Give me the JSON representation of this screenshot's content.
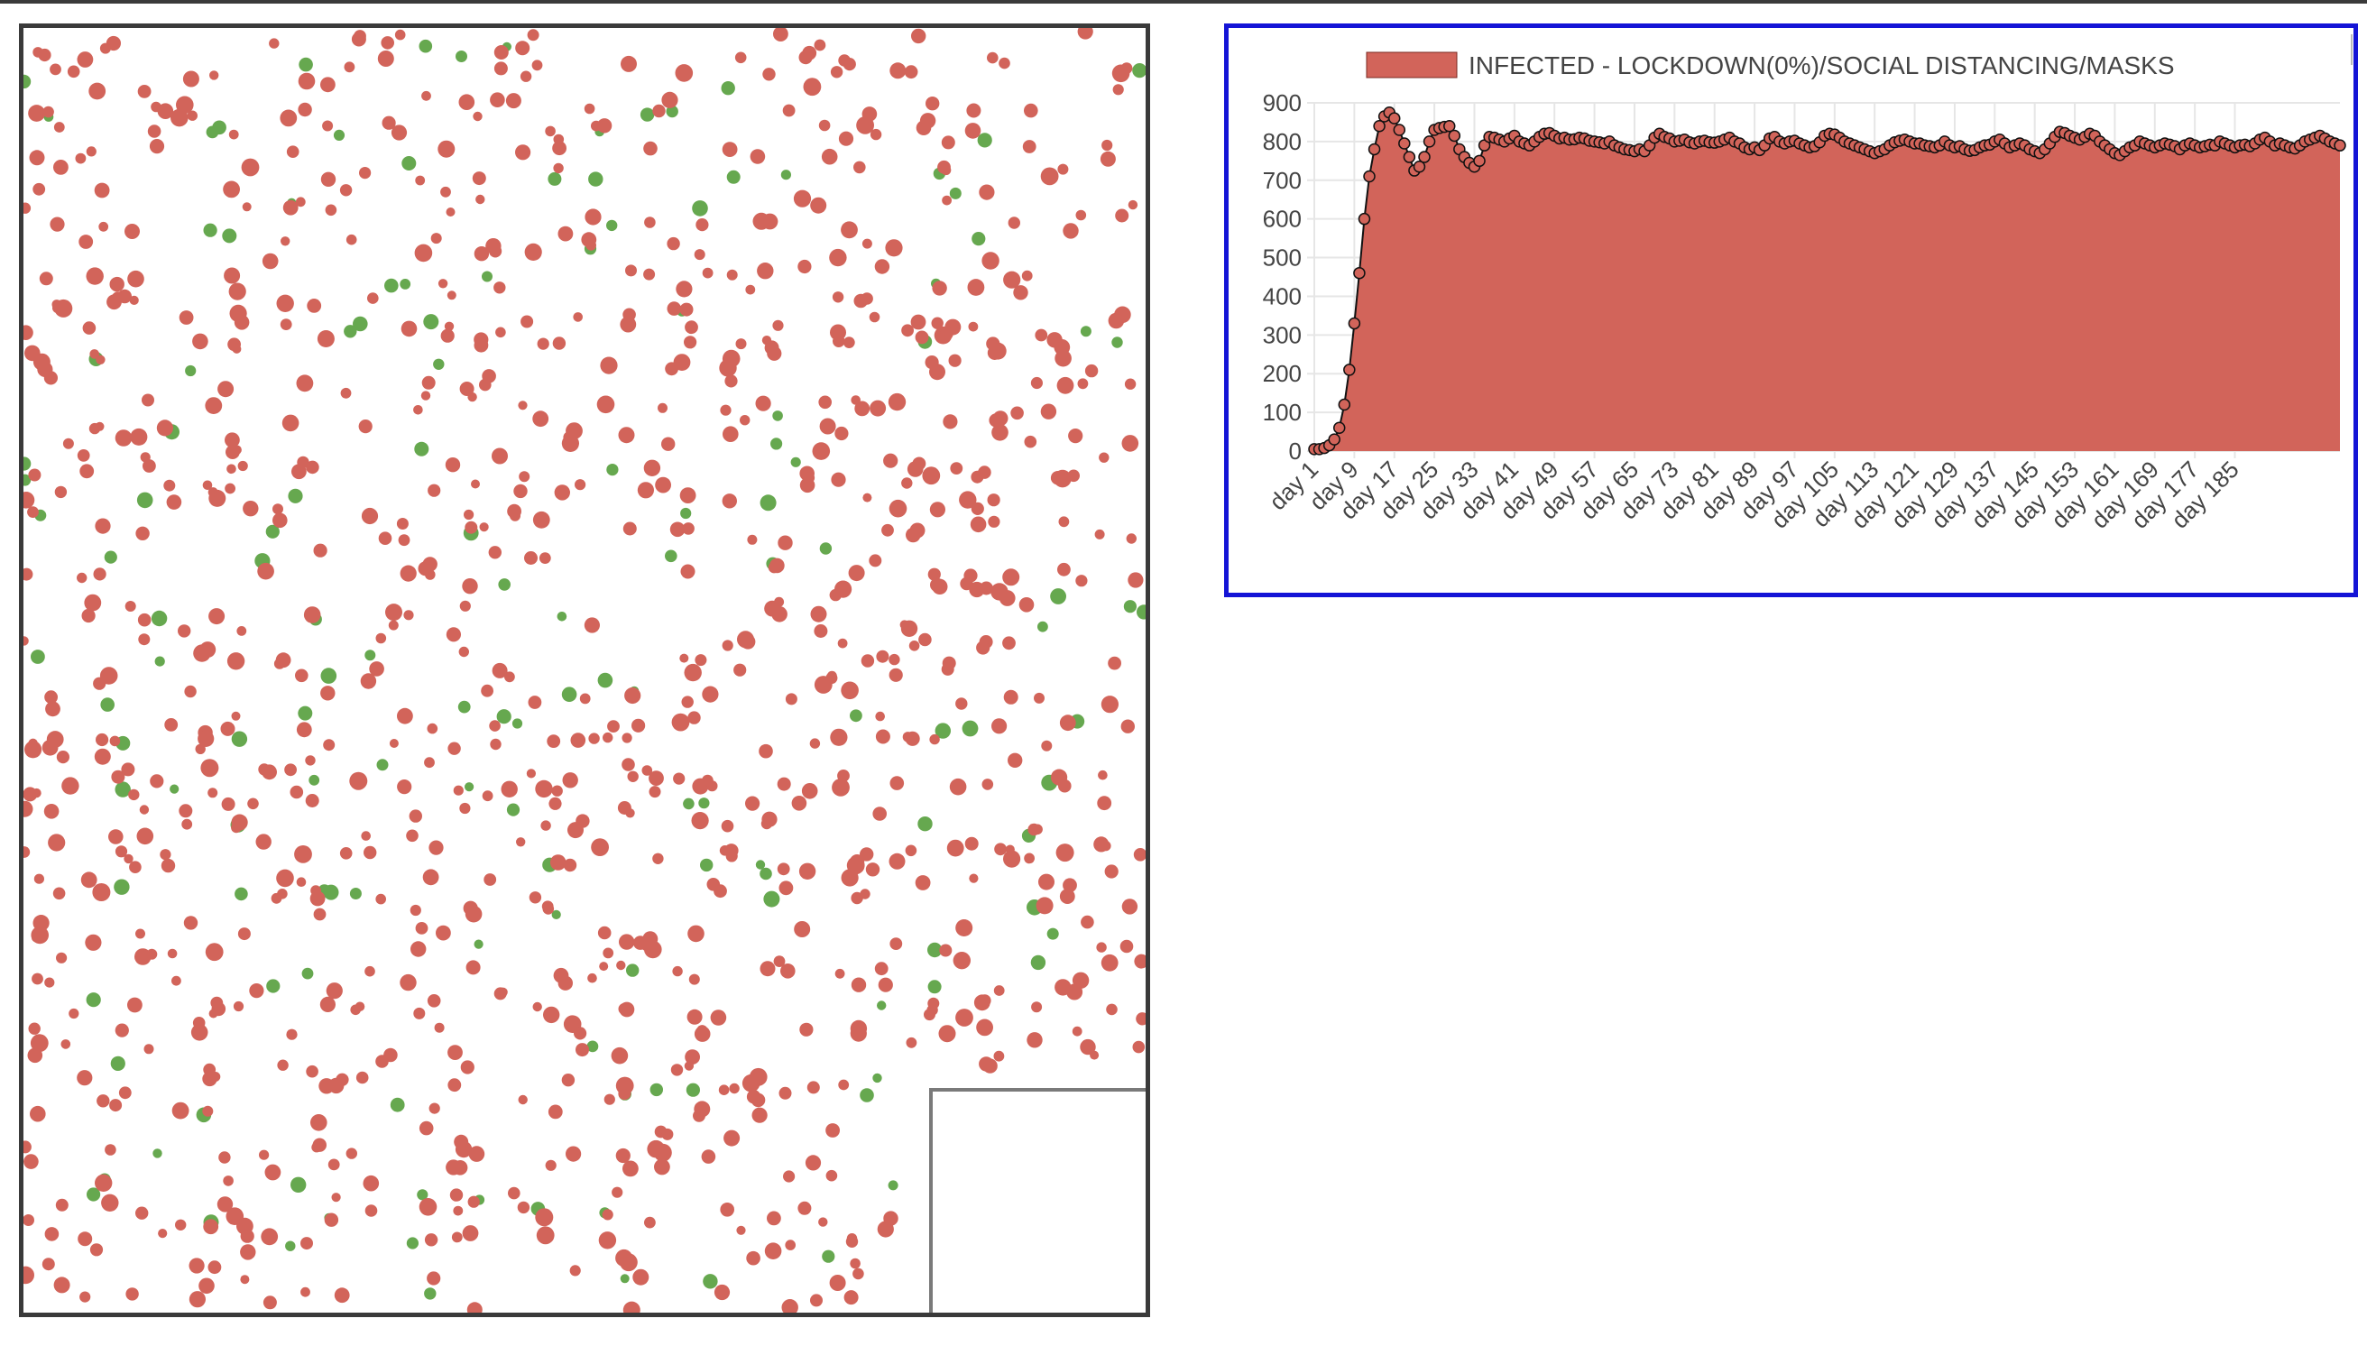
{
  "colors": {
    "infected": "#d2645a",
    "infected_stroke": "#7a2a22",
    "recovered": "#66a84f",
    "line": "#111111",
    "grid": "#e6e6e6",
    "axis_text": "#444444",
    "chart_border": "#1414d6",
    "panel_border": "#3a3a3a"
  },
  "simulation": {
    "seed": 71,
    "infected_count": 980,
    "recovered_count": 150
  },
  "chart_data": {
    "type": "area",
    "legend": {
      "label": "INFECTED - LOCKDOWN(0%)/SOCIAL DISTANCING/MASKS",
      "placement": "top"
    },
    "ylim": [
      0,
      900
    ],
    "yticks": [
      0,
      100,
      200,
      300,
      400,
      500,
      600,
      700,
      800,
      900
    ],
    "xlabel": "",
    "ylabel": "",
    "grid": true,
    "xtick_labels": [
      "day 1",
      "day 9",
      "day 17",
      "day 25",
      "day 33",
      "day 41",
      "day 49",
      "day 57",
      "day 65",
      "day 73",
      "day 81",
      "day 89",
      "day 97",
      "day 105",
      "day 113",
      "day 121",
      "day 129",
      "day 137",
      "day 145",
      "day 153",
      "day 161",
      "day 169",
      "day 177",
      "day 185"
    ],
    "series": [
      {
        "values": [
          5,
          5,
          8,
          15,
          30,
          60,
          120,
          210,
          330,
          460,
          600,
          710,
          780,
          840,
          865,
          875,
          860,
          830,
          795,
          760,
          725,
          735,
          760,
          800,
          830,
          835,
          838,
          840,
          815,
          780,
          760,
          745,
          735,
          750,
          790,
          812,
          810,
          805,
          800,
          808,
          815,
          800,
          795,
          790,
          800,
          812,
          820,
          822,
          815,
          808,
          810,
          805,
          806,
          810,
          808,
          802,
          800,
          798,
          795,
          800,
          790,
          785,
          780,
          778,
          775,
          780,
          775,
          790,
          810,
          820,
          812,
          808,
          800,
          802,
          805,
          798,
          795,
          800,
          802,
          798,
          797,
          800,
          805,
          810,
          800,
          795,
          785,
          780,
          785,
          778,
          790,
          808,
          812,
          800,
          795,
          800,
          802,
          795,
          790,
          785,
          788,
          798,
          815,
          820,
          818,
          810,
          800,
          795,
          790,
          785,
          780,
          775,
          770,
          775,
          780,
          790,
          798,
          802,
          805,
          800,
          795,
          795,
          790,
          788,
          785,
          790,
          800,
          790,
          785,
          788,
          780,
          776,
          778,
          785,
          790,
          792,
          800,
          805,
          795,
          785,
          790,
          795,
          790,
          780,
          775,
          770,
          780,
          795,
          812,
          825,
          822,
          815,
          810,
          805,
          812,
          820,
          815,
          800,
          790,
          780,
          770,
          765,
          775,
          785,
          790,
          800,
          795,
          790,
          785,
          790,
          795,
          792,
          788,
          780,
          790,
          795,
          790,
          785,
          788,
          792,
          790,
          800,
          795,
          790,
          785,
          790,
          792,
          788,
          795,
          805,
          810,
          800,
          790,
          795,
          790,
          785,
          782,
          790,
          800,
          805,
          810,
          815,
          808,
          800,
          795,
          790
        ]
      }
    ]
  }
}
